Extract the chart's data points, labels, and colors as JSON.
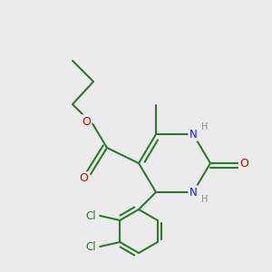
{
  "background_color": "#ebebeb",
  "bond_color": "#2d7a2d",
  "bond_width": 1.5,
  "atom_colors": {
    "O": "#cc0000",
    "N": "#1a1aff",
    "Cl": "#2d7a2d",
    "C": "#2d7a2d",
    "H": "#8888bb"
  },
  "font_size_atoms": 8.5,
  "font_size_small": 7.5
}
